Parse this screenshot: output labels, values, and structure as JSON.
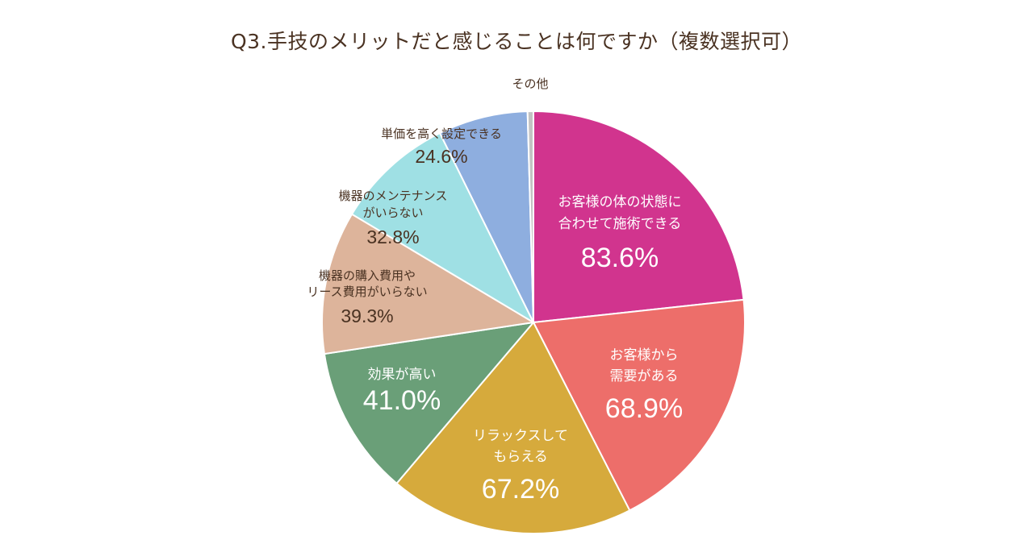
{
  "chart_data": {
    "type": "pie",
    "title": "Q3.手技のメリットだと感じることは何ですか（複数選択可）",
    "slices": [
      {
        "label_lines": [
          "お客様の体の状態に",
          "合わせて施術できる"
        ],
        "value_label": "83.6%",
        "value": 83.6,
        "color": "#d1348e"
      },
      {
        "label_lines": [
          "お客様から",
          "需要がある"
        ],
        "value_label": "68.9%",
        "value": 68.9,
        "color": "#ed6e6a"
      },
      {
        "label_lines": [
          "リラックスして",
          "もらえる"
        ],
        "value_label": "67.2%",
        "value": 67.2,
        "color": "#d6aa3c"
      },
      {
        "label_lines": [
          "効果が高い"
        ],
        "value_label": "41.0%",
        "value": 41.0,
        "color": "#6a9f78"
      },
      {
        "label_lines": [
          "機器の購入費用や",
          "リース費用がいらない"
        ],
        "value_label": "39.3%",
        "value": 39.3,
        "color": "#ddb49b"
      },
      {
        "label_lines": [
          "機器のメンテナンス",
          "がいらない"
        ],
        "value_label": "32.8%",
        "value": 32.8,
        "color": "#9fe0e4"
      },
      {
        "label_lines": [
          "単価を高く設定できる"
        ],
        "value_label": "24.6%",
        "value": 24.6,
        "color": "#8eaedf"
      },
      {
        "label_lines": [
          "その他"
        ],
        "value_label": "",
        "value": 1.6,
        "color": "#c3c3c3"
      }
    ]
  }
}
